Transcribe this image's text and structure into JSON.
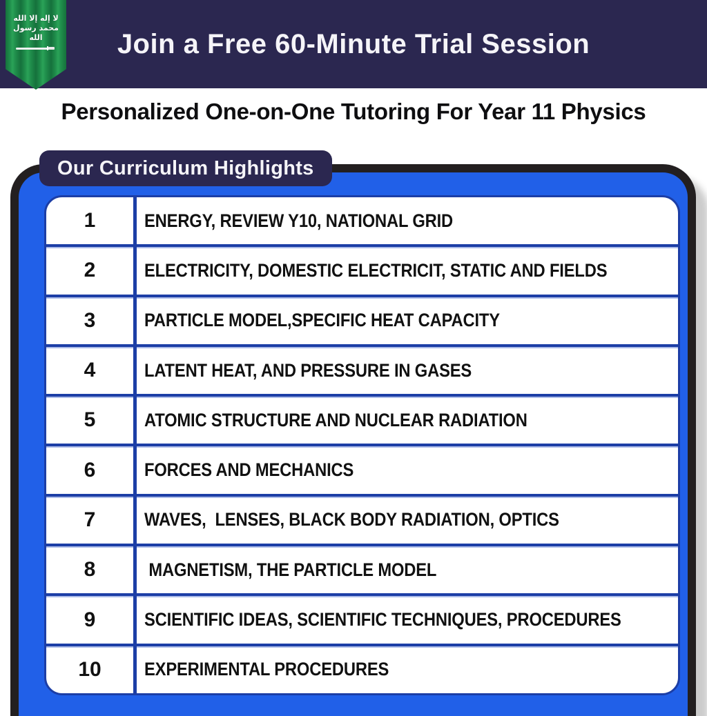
{
  "banner": {
    "title": "Join a Free 60-Minute Trial Session",
    "bg_color": "#2b2750"
  },
  "flag": {
    "name": "saudi-arabia-flag-pennant",
    "shahada": "لا إله إلا الله محمد رسول الله",
    "green": "#1f8c4a"
  },
  "subtitle": "Personalized One-on-One Tutoring For Year 11 Physics",
  "curriculum": {
    "label": "Our Curriculum Highlights",
    "accent_blue": "#2160e8",
    "divider_blue": "#1c3ea6",
    "outline_black": "#231f20",
    "shadow_gray": "#cccccc",
    "rows": [
      {
        "num": "1",
        "topic": "ENERGY, REVIEW Y10, NATIONAL GRID"
      },
      {
        "num": "2",
        "topic": "ELECTRICITY, DOMESTIC ELECTRICIT, STATIC AND FIELDS"
      },
      {
        "num": "3",
        "topic": "PARTICLE MODEL,SPECIFIC HEAT CAPACITY"
      },
      {
        "num": "4",
        "topic": "LATENT HEAT, AND PRESSURE IN GASES"
      },
      {
        "num": "5",
        "topic": "ATOMIC STRUCTURE AND NUCLEAR RADIATION"
      },
      {
        "num": "6",
        "topic": "FORCES AND MECHANICS"
      },
      {
        "num": "7",
        "topic": "WAVES,  LENSES, BLACK BODY RADIATION, OPTICS"
      },
      {
        "num": "8",
        "topic": " MAGNETISM, THE PARTICLE MODEL"
      },
      {
        "num": "9",
        "topic": "SCIENTIFIC IDEAS, SCIENTIFIC TECHNIQUES, PROCEDURES"
      },
      {
        "num": "10",
        "topic": "EXPERIMENTAL PROCEDURES"
      }
    ]
  }
}
